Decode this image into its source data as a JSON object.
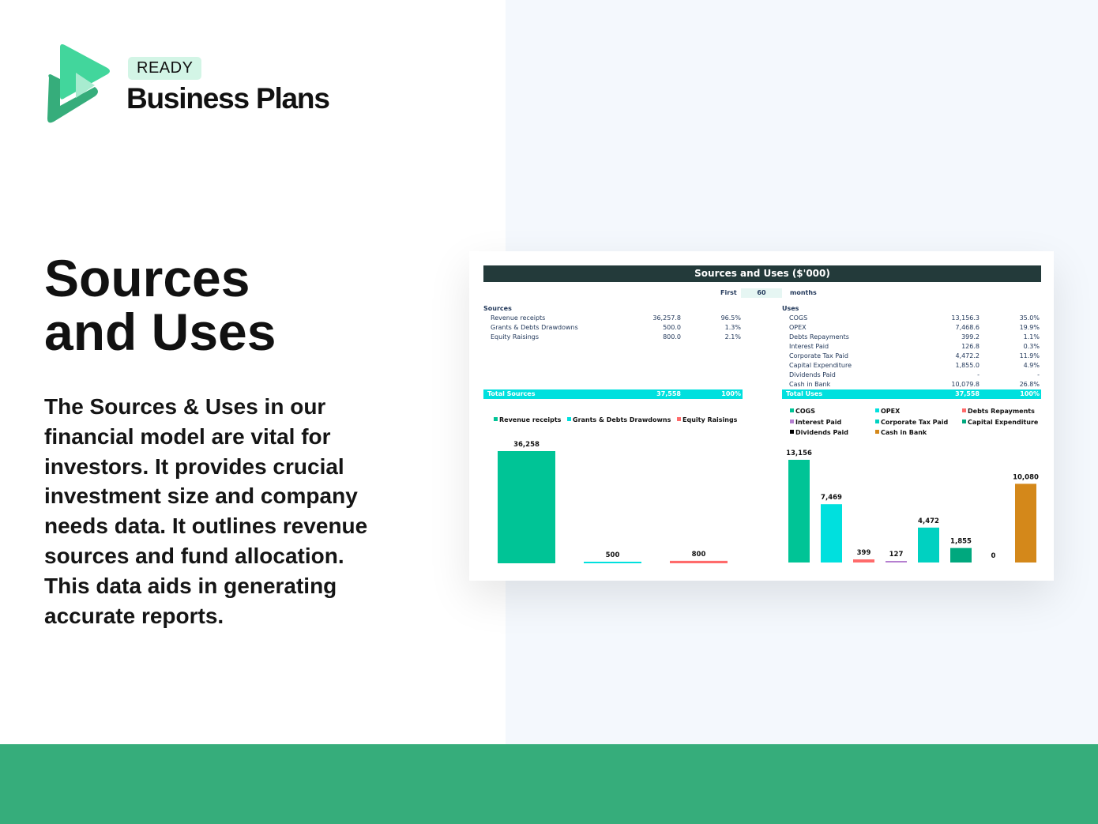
{
  "brand": {
    "badge": "READY",
    "name": "Business Plans"
  },
  "heading": {
    "line1": "Sources",
    "line2": "and Uses"
  },
  "description": "The Sources & Uses in our financial model are vital for investors. It provides crucial investment size and company needs data. It outlines revenue sources and fund allocation. This data aids in generating accurate reports.",
  "colors": {
    "brand_green": "#36ad7b",
    "logo_green": "#42d69c",
    "header": "#233a3a",
    "total_bar": "#00e0de"
  },
  "sheet": {
    "title": "Sources and Uses ($'000)",
    "period_label": "First",
    "period_value": "60",
    "period_unit": "months",
    "sources": {
      "label": "Sources",
      "rows": [
        {
          "label": "Revenue receipts",
          "value": "36,257.8",
          "pct": "96.5%"
        },
        {
          "label": "Grants & Debts Drawdowns",
          "value": "500.0",
          "pct": "1.3%"
        },
        {
          "label": "Equity Raisings",
          "value": "800.0",
          "pct": "2.1%"
        }
      ],
      "total": {
        "label": "Total Sources",
        "value": "37,558",
        "pct": "100%"
      }
    },
    "uses": {
      "label": "Uses",
      "rows": [
        {
          "label": "COGS",
          "value": "13,156.3",
          "pct": "35.0%"
        },
        {
          "label": "OPEX",
          "value": "7,468.6",
          "pct": "19.9%"
        },
        {
          "label": "Debts Repayments",
          "value": "399.2",
          "pct": "1.1%"
        },
        {
          "label": "Interest Paid",
          "value": "126.8",
          "pct": "0.3%"
        },
        {
          "label": "Corporate Tax Paid",
          "value": "4,472.2",
          "pct": "11.9%"
        },
        {
          "label": "Capital Expenditure",
          "value": "1,855.0",
          "pct": "4.9%"
        },
        {
          "label": "Dividends Paid",
          "value": "-",
          "pct": "-"
        },
        {
          "label": "Cash in Bank",
          "value": "10,079.8",
          "pct": "26.8%"
        }
      ],
      "total": {
        "label": "Total Uses",
        "value": "37,558",
        "pct": "100%"
      }
    }
  },
  "chart_data": [
    {
      "type": "bar",
      "legend": "top",
      "grid": false,
      "categories": [
        "Revenue receipts",
        "Grants & Debts Drawdowns",
        "Equity Raisings"
      ],
      "values": [
        36258,
        500,
        800
      ],
      "labels": [
        "36,258",
        "500",
        "800"
      ],
      "colors": [
        "#00c496",
        "#00e0de",
        "#ff6b6b"
      ]
    },
    {
      "type": "bar",
      "legend": "top",
      "grid": false,
      "categories": [
        "COGS",
        "OPEX",
        "Debts Repayments",
        "Interest Paid",
        "Corporate Tax Paid",
        "Capital Expenditure",
        "Dividends Paid",
        "Cash in Bank"
      ],
      "values": [
        13156,
        7469,
        399,
        127,
        4472,
        1855,
        0,
        10080
      ],
      "labels": [
        "13,156",
        "7,469",
        "399",
        "127",
        "4,472",
        "1,855",
        "0",
        "10,080"
      ],
      "colors": [
        "#00c496",
        "#00e0de",
        "#ff6b6b",
        "#b57fd0",
        "#00d1c1",
        "#00a87e",
        "#000000",
        "#d4881a"
      ]
    }
  ]
}
